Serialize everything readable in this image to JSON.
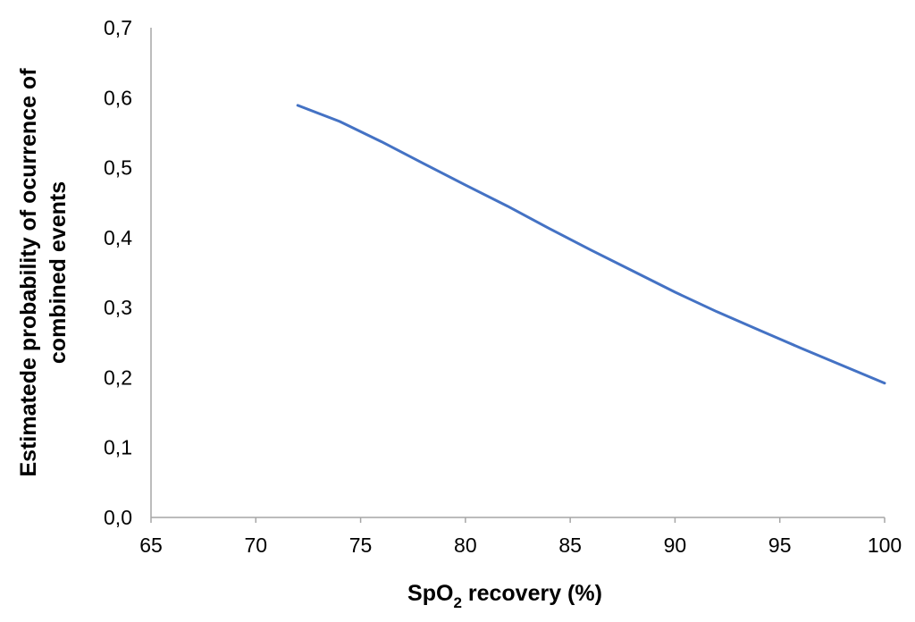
{
  "chart_data": {
    "type": "line",
    "xlabel_main": "SpO",
    "xlabel_sub": "2",
    "xlabel_rest": " recovery (%)",
    "ylabel_line1": "Estimatede probability of ocurrence of",
    "ylabel_line2": "combined events",
    "xlim": [
      65,
      100
    ],
    "ylim": [
      0,
      0.7
    ],
    "x_ticks": [
      65,
      70,
      75,
      80,
      85,
      90,
      95,
      100
    ],
    "x_tick_labels": [
      "65",
      "70",
      "75",
      "80",
      "85",
      "90",
      "95",
      "100"
    ],
    "y_ticks": [
      0,
      0.1,
      0.2,
      0.3,
      0.4,
      0.5,
      0.6,
      0.7
    ],
    "y_tick_labels": [
      "0,0",
      "0,1",
      "0,2",
      "0,3",
      "0,4",
      "0,5",
      "0,6",
      "0,7"
    ],
    "grid": false,
    "legend": "none",
    "series": [
      {
        "color": "#4472c4",
        "x": [
          72,
          74,
          76,
          78,
          80,
          82,
          84,
          86,
          88,
          90,
          92,
          94,
          96,
          98,
          100
        ],
        "y": [
          0.589,
          0.566,
          0.537,
          0.506,
          0.475,
          0.445,
          0.413,
          0.382,
          0.352,
          0.322,
          0.294,
          0.268,
          0.242,
          0.217,
          0.192
        ]
      }
    ]
  }
}
